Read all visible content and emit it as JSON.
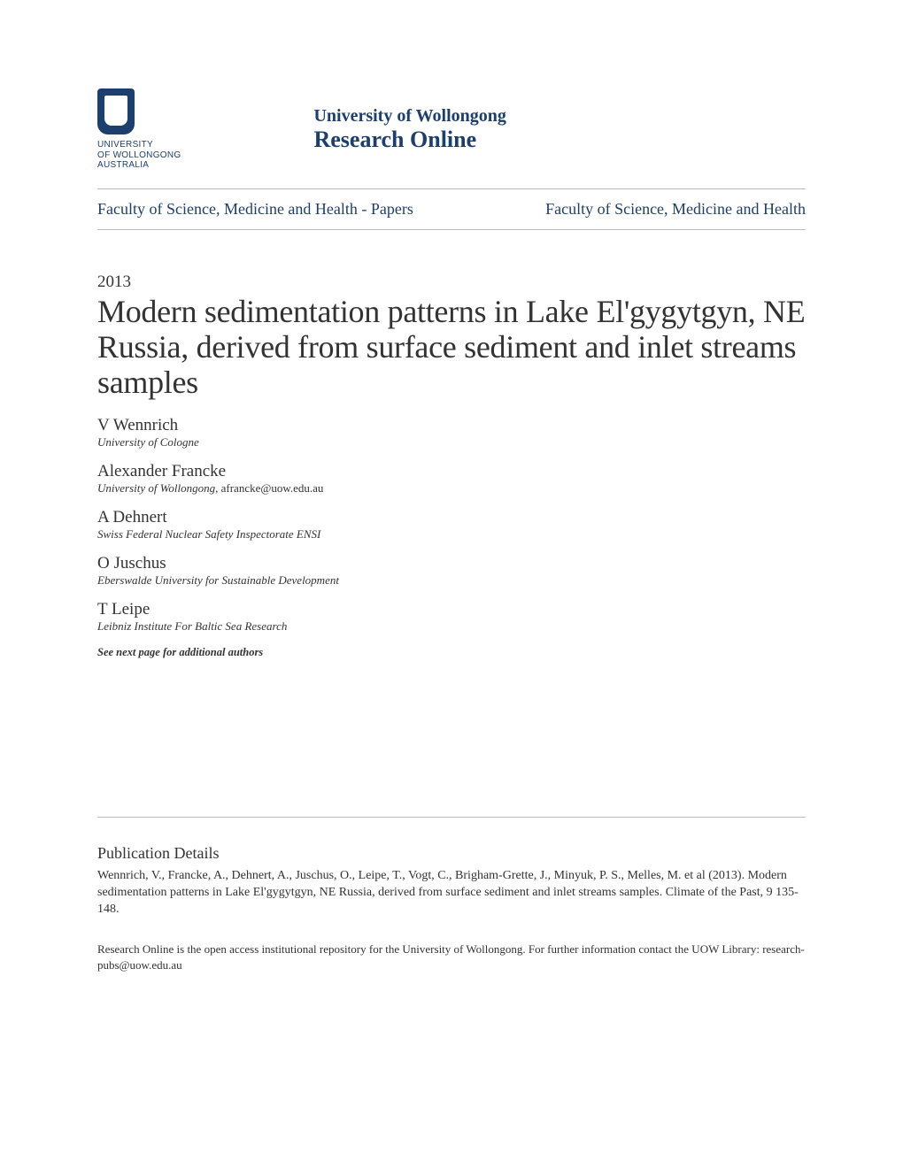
{
  "logo": {
    "line1": "UNIVERSITY",
    "line2": "OF WOLLONGONG",
    "line3": "AUSTRALIA"
  },
  "brand": {
    "university": "University of Wollongong",
    "site_name": "Research Online"
  },
  "breadcrumb": {
    "left": "Faculty of Science, Medicine and Health - Papers",
    "right": "Faculty of Science, Medicine and Health"
  },
  "year": "2013",
  "title": "Modern sedimentation patterns in Lake El'gygytgyn, NE Russia, derived from surface sediment and inlet streams samples",
  "authors": [
    {
      "name": "V Wennrich",
      "affiliation": "University of Cologne",
      "email": ""
    },
    {
      "name": "Alexander Francke",
      "affiliation": "University of Wollongong",
      "email": ", afrancke@uow.edu.au"
    },
    {
      "name": "A Dehnert",
      "affiliation": "Swiss Federal Nuclear Safety Inspectorate ENSI",
      "email": ""
    },
    {
      "name": "O Juschus",
      "affiliation": "Eberswalde University for Sustainable Development",
      "email": ""
    },
    {
      "name": "T Leipe",
      "affiliation": "Leibniz Institute For Baltic Sea Research",
      "email": ""
    }
  ],
  "see_next": "See next page for additional authors",
  "publication": {
    "heading": "Publication Details",
    "text": "Wennrich, V., Francke, A., Dehnert, A., Juschus, O., Leipe, T., Vogt, C., Brigham-Grette, J., Minyuk, P. S., Melles, M. et al (2013). Modern sedimentation patterns in Lake El'gygytgyn, NE Russia, derived from surface sediment and inlet streams samples. Climate of the Past, 9 135-148."
  },
  "footer": "Research Online is the open access institutional repository for the University of Wollongong. For further information contact the UOW Library: research-pubs@uow.edu.au",
  "colors": {
    "brand": "#1c3f6e",
    "text": "#333333",
    "divider": "#bdbdbd",
    "background": "#ffffff"
  },
  "typography": {
    "title_fontsize": 36,
    "author_name_fontsize": 19,
    "affil_fontsize": 13,
    "year_fontsize": 19,
    "breadcrumb_fontsize": 18,
    "brand_univ_fontsize": 20,
    "brand_name_fontsize": 26,
    "pub_heading_fontsize": 18,
    "pub_text_fontsize": 14,
    "footer_fontsize": 13
  }
}
